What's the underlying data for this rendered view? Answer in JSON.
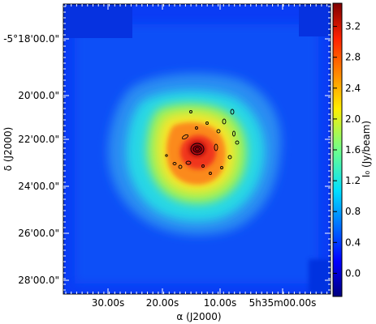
{
  "chart_data": {
    "type": "heatmap",
    "title": "",
    "xlabel": "α (J2000)",
    "ylabel": "δ (J2000)",
    "x_ticks": [
      "30.00s",
      "20.00s",
      "10.00s",
      "5h35m00.00s"
    ],
    "y_ticks": [
      "-5°18'00.0\"",
      "20'00.0\"",
      "22'00.0\"",
      "24'00.0\"",
      "26'00.0\"",
      "28'00.0\""
    ],
    "colorbar": {
      "label": "I₀ (Jy/beam)",
      "ticks": [
        "3.2",
        "2.8",
        "2.4",
        "2.0",
        "1.6",
        "1.2",
        "0.8",
        "0.4",
        "0.0"
      ],
      "range": [
        -0.3,
        3.5
      ]
    },
    "peak": {
      "value": 3.4
    },
    "background": {
      "value": 0.1
    },
    "colormap": "jet",
    "contours": "black"
  }
}
